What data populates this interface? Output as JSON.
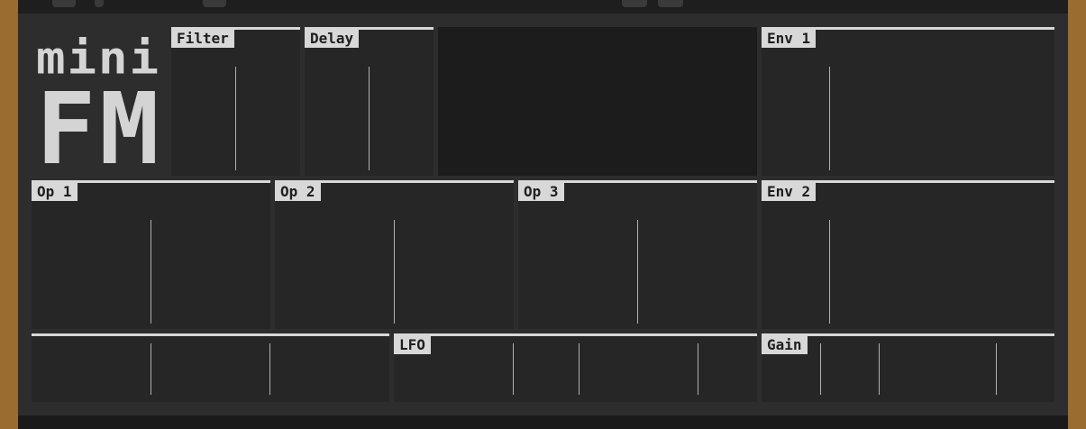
{
  "logo": {
    "line1": "mini",
    "line2": "FM"
  },
  "panels": {
    "filter": "Filter",
    "delay": "Delay",
    "env1": "Env 1",
    "op1": "Op 1",
    "op2": "Op 2",
    "op3": "Op 3",
    "env2": "Env 2",
    "lfo": "LFO",
    "gain": "Gain"
  },
  "colors": {
    "frame_wood": "#9a6c30",
    "panel_bg": "#262626",
    "label_bg": "#d8d8d8",
    "display_bg": "#1c1c1c"
  }
}
